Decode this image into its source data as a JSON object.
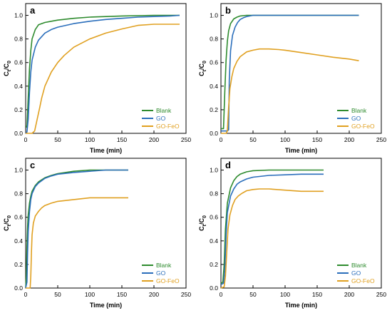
{
  "chart_data": [
    {
      "panel_label": "a",
      "type": "line",
      "xlabel": "Time (min)",
      "ylabel_main": "C",
      "ylabel_sub1": "t",
      "ylabel_sep": "/C",
      "ylabel_sub2": "0",
      "xlim": [
        0,
        250
      ],
      "ylim": [
        0,
        1.1
      ],
      "xticks": [
        0,
        50,
        100,
        150,
        200,
        250
      ],
      "yticks": [
        0.0,
        0.2,
        0.4,
        0.6,
        0.8,
        1.0
      ],
      "xtick_labels": [
        "0",
        "50",
        "100",
        "150",
        "200",
        "250"
      ],
      "ytick_labels": [
        "0.0",
        "0.2",
        "0.4",
        "0.6",
        "0.8",
        "1.0"
      ],
      "legend_position": "bottom-right",
      "series": [
        {
          "name": "Blank",
          "color": "#2e8b2e",
          "x": [
            0,
            1,
            2,
            4,
            6,
            8,
            10,
            15,
            20,
            30,
            40,
            50,
            75,
            100,
            150,
            200,
            240
          ],
          "y": [
            0.06,
            0.06,
            0.05,
            0.3,
            0.55,
            0.7,
            0.8,
            0.88,
            0.92,
            0.94,
            0.95,
            0.96,
            0.975,
            0.985,
            0.995,
            1.0,
            1.0
          ]
        },
        {
          "name": "GO",
          "color": "#2a6ebb",
          "x": [
            0,
            2,
            4,
            6,
            8,
            10,
            15,
            20,
            30,
            40,
            50,
            75,
            100,
            125,
            150,
            175,
            200,
            225,
            240
          ],
          "y": [
            0.0,
            0.01,
            0.12,
            0.35,
            0.52,
            0.62,
            0.73,
            0.79,
            0.85,
            0.88,
            0.9,
            0.93,
            0.95,
            0.965,
            0.975,
            0.985,
            0.99,
            0.995,
            1.0
          ]
        },
        {
          "name": "GO-FeO",
          "color": "#e0a020",
          "x": [
            0,
            10,
            14,
            18,
            22,
            25,
            30,
            40,
            50,
            60,
            75,
            100,
            125,
            150,
            175,
            200,
            240
          ],
          "y": [
            0.0,
            0.0,
            0.02,
            0.12,
            0.22,
            0.3,
            0.4,
            0.52,
            0.6,
            0.66,
            0.73,
            0.8,
            0.85,
            0.885,
            0.915,
            0.925,
            0.925
          ]
        }
      ]
    },
    {
      "panel_label": "b",
      "type": "line",
      "xlabel": "Time (min)",
      "ylabel_main": "C",
      "ylabel_sub1": "t",
      "ylabel_sep": "/C",
      "ylabel_sub2": "0",
      "xlim": [
        0,
        250
      ],
      "ylim": [
        0,
        1.1
      ],
      "xticks": [
        0,
        50,
        100,
        150,
        200,
        250
      ],
      "yticks": [
        0.0,
        0.2,
        0.4,
        0.6,
        0.8,
        1.0
      ],
      "xtick_labels": [
        "0",
        "50",
        "100",
        "150",
        "200",
        "250"
      ],
      "ytick_labels": [
        "0.0",
        "0.2",
        "0.4",
        "0.6",
        "0.8",
        "1.0"
      ],
      "legend_position": "bottom-right",
      "series": [
        {
          "name": "Blank",
          "color": "#2e8b2e",
          "x": [
            0,
            4,
            6,
            8,
            10,
            12,
            15,
            20,
            25,
            30,
            40,
            50,
            100,
            150,
            215
          ],
          "y": [
            0.04,
            0.04,
            0.35,
            0.62,
            0.78,
            0.87,
            0.93,
            0.97,
            0.985,
            0.995,
            1.0,
            1.0,
            1.0,
            1.0,
            1.0
          ]
        },
        {
          "name": "GO",
          "color": "#2a6ebb",
          "x": [
            0,
            10,
            12,
            13,
            15,
            18,
            22,
            26,
            30,
            35,
            40,
            50,
            100,
            150,
            215
          ],
          "y": [
            0.02,
            0.02,
            0.03,
            0.45,
            0.7,
            0.83,
            0.9,
            0.94,
            0.965,
            0.98,
            0.99,
            1.0,
            1.0,
            1.0,
            1.0
          ]
        },
        {
          "name": "GO-FeO",
          "color": "#e0a020",
          "x": [
            0,
            8,
            10,
            12,
            14,
            17,
            20,
            25,
            30,
            40,
            50,
            60,
            75,
            90,
            100,
            125,
            150,
            175,
            200,
            215
          ],
          "y": [
            0.0,
            0.0,
            0.02,
            0.22,
            0.38,
            0.48,
            0.55,
            0.61,
            0.65,
            0.69,
            0.705,
            0.715,
            0.715,
            0.71,
            0.705,
            0.685,
            0.665,
            0.645,
            0.63,
            0.615
          ]
        }
      ]
    },
    {
      "panel_label": "c",
      "type": "line",
      "xlabel": "Time (min)",
      "ylabel_main": "C",
      "ylabel_sub1": "t",
      "ylabel_sep": "/C",
      "ylabel_sub2": "0",
      "xlim": [
        0,
        250
      ],
      "ylim": [
        0,
        1.1
      ],
      "xticks": [
        0,
        50,
        100,
        150,
        200,
        250
      ],
      "yticks": [
        0.0,
        0.2,
        0.4,
        0.6,
        0.8,
        1.0
      ],
      "xtick_labels": [
        "0",
        "50",
        "100",
        "150",
        "200",
        "250"
      ],
      "ytick_labels": [
        "0.0",
        "0.2",
        "0.4",
        "0.6",
        "0.8",
        "1.0"
      ],
      "legend_position": "bottom-right",
      "series": [
        {
          "name": "Blank",
          "color": "#2e8b2e",
          "x": [
            0,
            1,
            2,
            3,
            4,
            6,
            8,
            10,
            15,
            20,
            30,
            40,
            50,
            75,
            100,
            125,
            160
          ],
          "y": [
            0.0,
            0.1,
            0.35,
            0.52,
            0.62,
            0.72,
            0.78,
            0.82,
            0.87,
            0.9,
            0.935,
            0.955,
            0.97,
            0.99,
            1.0,
            1.0,
            1.0
          ]
        },
        {
          "name": "GO",
          "color": "#2a6ebb",
          "x": [
            0,
            2,
            3,
            4,
            6,
            8,
            10,
            15,
            20,
            30,
            40,
            50,
            75,
            100,
            125,
            160
          ],
          "y": [
            0.0,
            0.05,
            0.3,
            0.48,
            0.65,
            0.75,
            0.8,
            0.86,
            0.89,
            0.93,
            0.95,
            0.965,
            0.98,
            0.99,
            1.0,
            1.0
          ]
        },
        {
          "name": "GO-FeO",
          "color": "#e0a020",
          "x": [
            0,
            7,
            8,
            9,
            10,
            12,
            15,
            20,
            25,
            30,
            40,
            50,
            75,
            100,
            125,
            160
          ],
          "y": [
            0.0,
            0.0,
            0.1,
            0.3,
            0.45,
            0.55,
            0.61,
            0.65,
            0.68,
            0.7,
            0.72,
            0.735,
            0.75,
            0.765,
            0.765,
            0.765
          ]
        }
      ]
    },
    {
      "panel_label": "d",
      "type": "line",
      "xlabel": "Time (min)",
      "ylabel_main": "C",
      "ylabel_sub1": "t",
      "ylabel_sep": "/C",
      "ylabel_sub2": "0",
      "xlim": [
        0,
        250
      ],
      "ylim": [
        0,
        1.1
      ],
      "xticks": [
        0,
        50,
        100,
        150,
        200,
        250
      ],
      "yticks": [
        0.0,
        0.2,
        0.4,
        0.6,
        0.8,
        1.0
      ],
      "xtick_labels": [
        "0",
        "50",
        "100",
        "150",
        "200",
        "250"
      ],
      "ytick_labels": [
        "0.0",
        "0.2",
        "0.4",
        "0.6",
        "0.8",
        "1.0"
      ],
      "legend_position": "bottom-right",
      "series": [
        {
          "name": "Blank",
          "color": "#2e8b2e",
          "x": [
            0,
            3,
            5,
            7,
            10,
            15,
            20,
            25,
            30,
            40,
            50,
            75,
            100,
            125,
            160
          ],
          "y": [
            0.04,
            0.05,
            0.2,
            0.5,
            0.72,
            0.85,
            0.91,
            0.945,
            0.965,
            0.985,
            0.995,
            1.0,
            1.0,
            1.0,
            1.0
          ]
        },
        {
          "name": "GO",
          "color": "#2a6ebb",
          "x": [
            0,
            4,
            6,
            8,
            10,
            15,
            20,
            25,
            30,
            40,
            50,
            75,
            100,
            125,
            160
          ],
          "y": [
            0.03,
            0.04,
            0.15,
            0.45,
            0.64,
            0.78,
            0.84,
            0.88,
            0.9,
            0.925,
            0.94,
            0.955,
            0.96,
            0.965,
            0.965
          ]
        },
        {
          "name": "GO-FeO",
          "color": "#e0a020",
          "x": [
            0,
            5,
            7,
            9,
            11,
            14,
            18,
            22,
            27,
            32,
            40,
            50,
            60,
            75,
            100,
            125,
            160
          ],
          "y": [
            0.0,
            0.01,
            0.1,
            0.3,
            0.5,
            0.62,
            0.7,
            0.75,
            0.78,
            0.8,
            0.825,
            0.835,
            0.84,
            0.84,
            0.83,
            0.82,
            0.82
          ]
        }
      ]
    }
  ]
}
